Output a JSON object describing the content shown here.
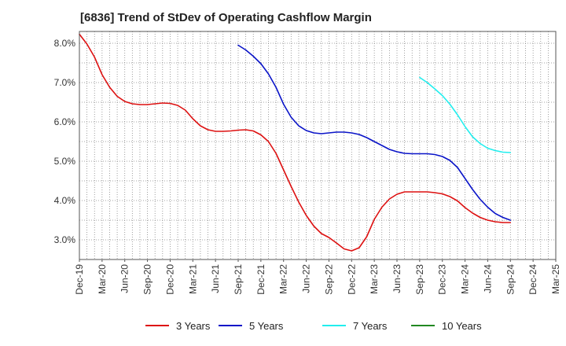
{
  "title": "[6836]  Trend of StDev of Operating Cashflow Margin",
  "chart_data": {
    "type": "line",
    "title": "[6836]  Trend of StDev of Operating Cashflow Margin",
    "xlabel": "",
    "ylabel": "",
    "ylim": [
      2.5,
      8.3
    ],
    "y_ticks": [
      3.0,
      4.0,
      5.0,
      6.0,
      7.0,
      8.0
    ],
    "y_tick_labels": [
      "3.0%",
      "4.0%",
      "5.0%",
      "6.0%",
      "7.0%",
      "8.0%"
    ],
    "x_range": [
      "2019-12",
      "2025-03"
    ],
    "x_ticks": [
      "2019-12",
      "2020-03",
      "2020-06",
      "2020-09",
      "2020-12",
      "2021-03",
      "2021-06",
      "2021-09",
      "2021-12",
      "2022-03",
      "2022-06",
      "2022-09",
      "2022-12",
      "2023-03",
      "2023-06",
      "2023-09",
      "2023-12",
      "2024-03",
      "2024-06",
      "2024-09",
      "2024-12",
      "2025-03"
    ],
    "x_tick_labels": [
      "Dec-19",
      "Mar-20",
      "Jun-20",
      "Sep-20",
      "Dec-20",
      "Mar-21",
      "Jun-21",
      "Sep-21",
      "Dec-21",
      "Mar-22",
      "Jun-22",
      "Sep-22",
      "Dec-22",
      "Mar-23",
      "Jun-23",
      "Sep-23",
      "Dec-23",
      "Mar-24",
      "Jun-24",
      "Sep-24",
      "Dec-24",
      "Mar-25"
    ],
    "grid": true,
    "legend_position": "bottom",
    "series": [
      {
        "name": "3 Years",
        "color": "#dd1111",
        "x": [
          "2019-12",
          "2020-01",
          "2020-02",
          "2020-03",
          "2020-04",
          "2020-05",
          "2020-06",
          "2020-07",
          "2020-08",
          "2020-09",
          "2020-10",
          "2020-11",
          "2020-12",
          "2021-01",
          "2021-02",
          "2021-03",
          "2021-04",
          "2021-05",
          "2021-06",
          "2021-07",
          "2021-08",
          "2021-09",
          "2021-10",
          "2021-11",
          "2021-12",
          "2022-01",
          "2022-02",
          "2022-03",
          "2022-04",
          "2022-05",
          "2022-06",
          "2022-07",
          "2022-08",
          "2022-09",
          "2022-10",
          "2022-11",
          "2022-12",
          "2023-01",
          "2023-02",
          "2023-03",
          "2023-04",
          "2023-05",
          "2023-06",
          "2023-07",
          "2023-08",
          "2023-09",
          "2023-10",
          "2023-11",
          "2023-12",
          "2024-01",
          "2024-02",
          "2024-03",
          "2024-04",
          "2024-05",
          "2024-06",
          "2024-07",
          "2024-08",
          "2024-09"
        ],
        "values": [
          8.23,
          7.98,
          7.65,
          7.2,
          6.88,
          6.65,
          6.52,
          6.46,
          6.44,
          6.44,
          6.46,
          6.48,
          6.47,
          6.42,
          6.3,
          6.08,
          5.9,
          5.8,
          5.76,
          5.76,
          5.77,
          5.79,
          5.8,
          5.77,
          5.67,
          5.5,
          5.2,
          4.78,
          4.36,
          3.96,
          3.62,
          3.35,
          3.16,
          3.06,
          2.92,
          2.77,
          2.72,
          2.8,
          3.08,
          3.52,
          3.83,
          4.04,
          4.16,
          4.22,
          4.22,
          4.22,
          4.22,
          4.2,
          4.17,
          4.1,
          3.99,
          3.82,
          3.68,
          3.57,
          3.5,
          3.46,
          3.44,
          3.44
        ]
      },
      {
        "name": "5 Years",
        "color": "#0a14c8",
        "x": [
          "2021-09",
          "2021-10",
          "2021-11",
          "2021-12",
          "2022-01",
          "2022-02",
          "2022-03",
          "2022-04",
          "2022-05",
          "2022-06",
          "2022-07",
          "2022-08",
          "2022-09",
          "2022-10",
          "2022-11",
          "2022-12",
          "2023-01",
          "2023-02",
          "2023-03",
          "2023-04",
          "2023-05",
          "2023-06",
          "2023-07",
          "2023-08",
          "2023-09",
          "2023-10",
          "2023-11",
          "2023-12",
          "2024-01",
          "2024-02",
          "2024-03",
          "2024-04",
          "2024-05",
          "2024-06",
          "2024-07",
          "2024-08",
          "2024-09"
        ],
        "values": [
          7.95,
          7.83,
          7.67,
          7.48,
          7.22,
          6.88,
          6.45,
          6.12,
          5.9,
          5.78,
          5.72,
          5.7,
          5.72,
          5.74,
          5.74,
          5.72,
          5.68,
          5.6,
          5.5,
          5.4,
          5.3,
          5.24,
          5.2,
          5.19,
          5.19,
          5.19,
          5.17,
          5.12,
          5.02,
          4.84,
          4.56,
          4.28,
          4.03,
          3.83,
          3.67,
          3.57,
          3.5
        ]
      },
      {
        "name": "7 Years",
        "color": "#22eeee",
        "x": [
          "2023-09",
          "2023-10",
          "2023-11",
          "2023-12",
          "2024-01",
          "2024-02",
          "2024-03",
          "2024-04",
          "2024-05",
          "2024-06",
          "2024-07",
          "2024-08",
          "2024-09"
        ],
        "values": [
          7.13,
          7.0,
          6.84,
          6.67,
          6.45,
          6.18,
          5.88,
          5.62,
          5.45,
          5.33,
          5.27,
          5.23,
          5.22
        ]
      },
      {
        "name": "10 Years",
        "color": "#228822",
        "x": [],
        "values": []
      }
    ]
  }
}
